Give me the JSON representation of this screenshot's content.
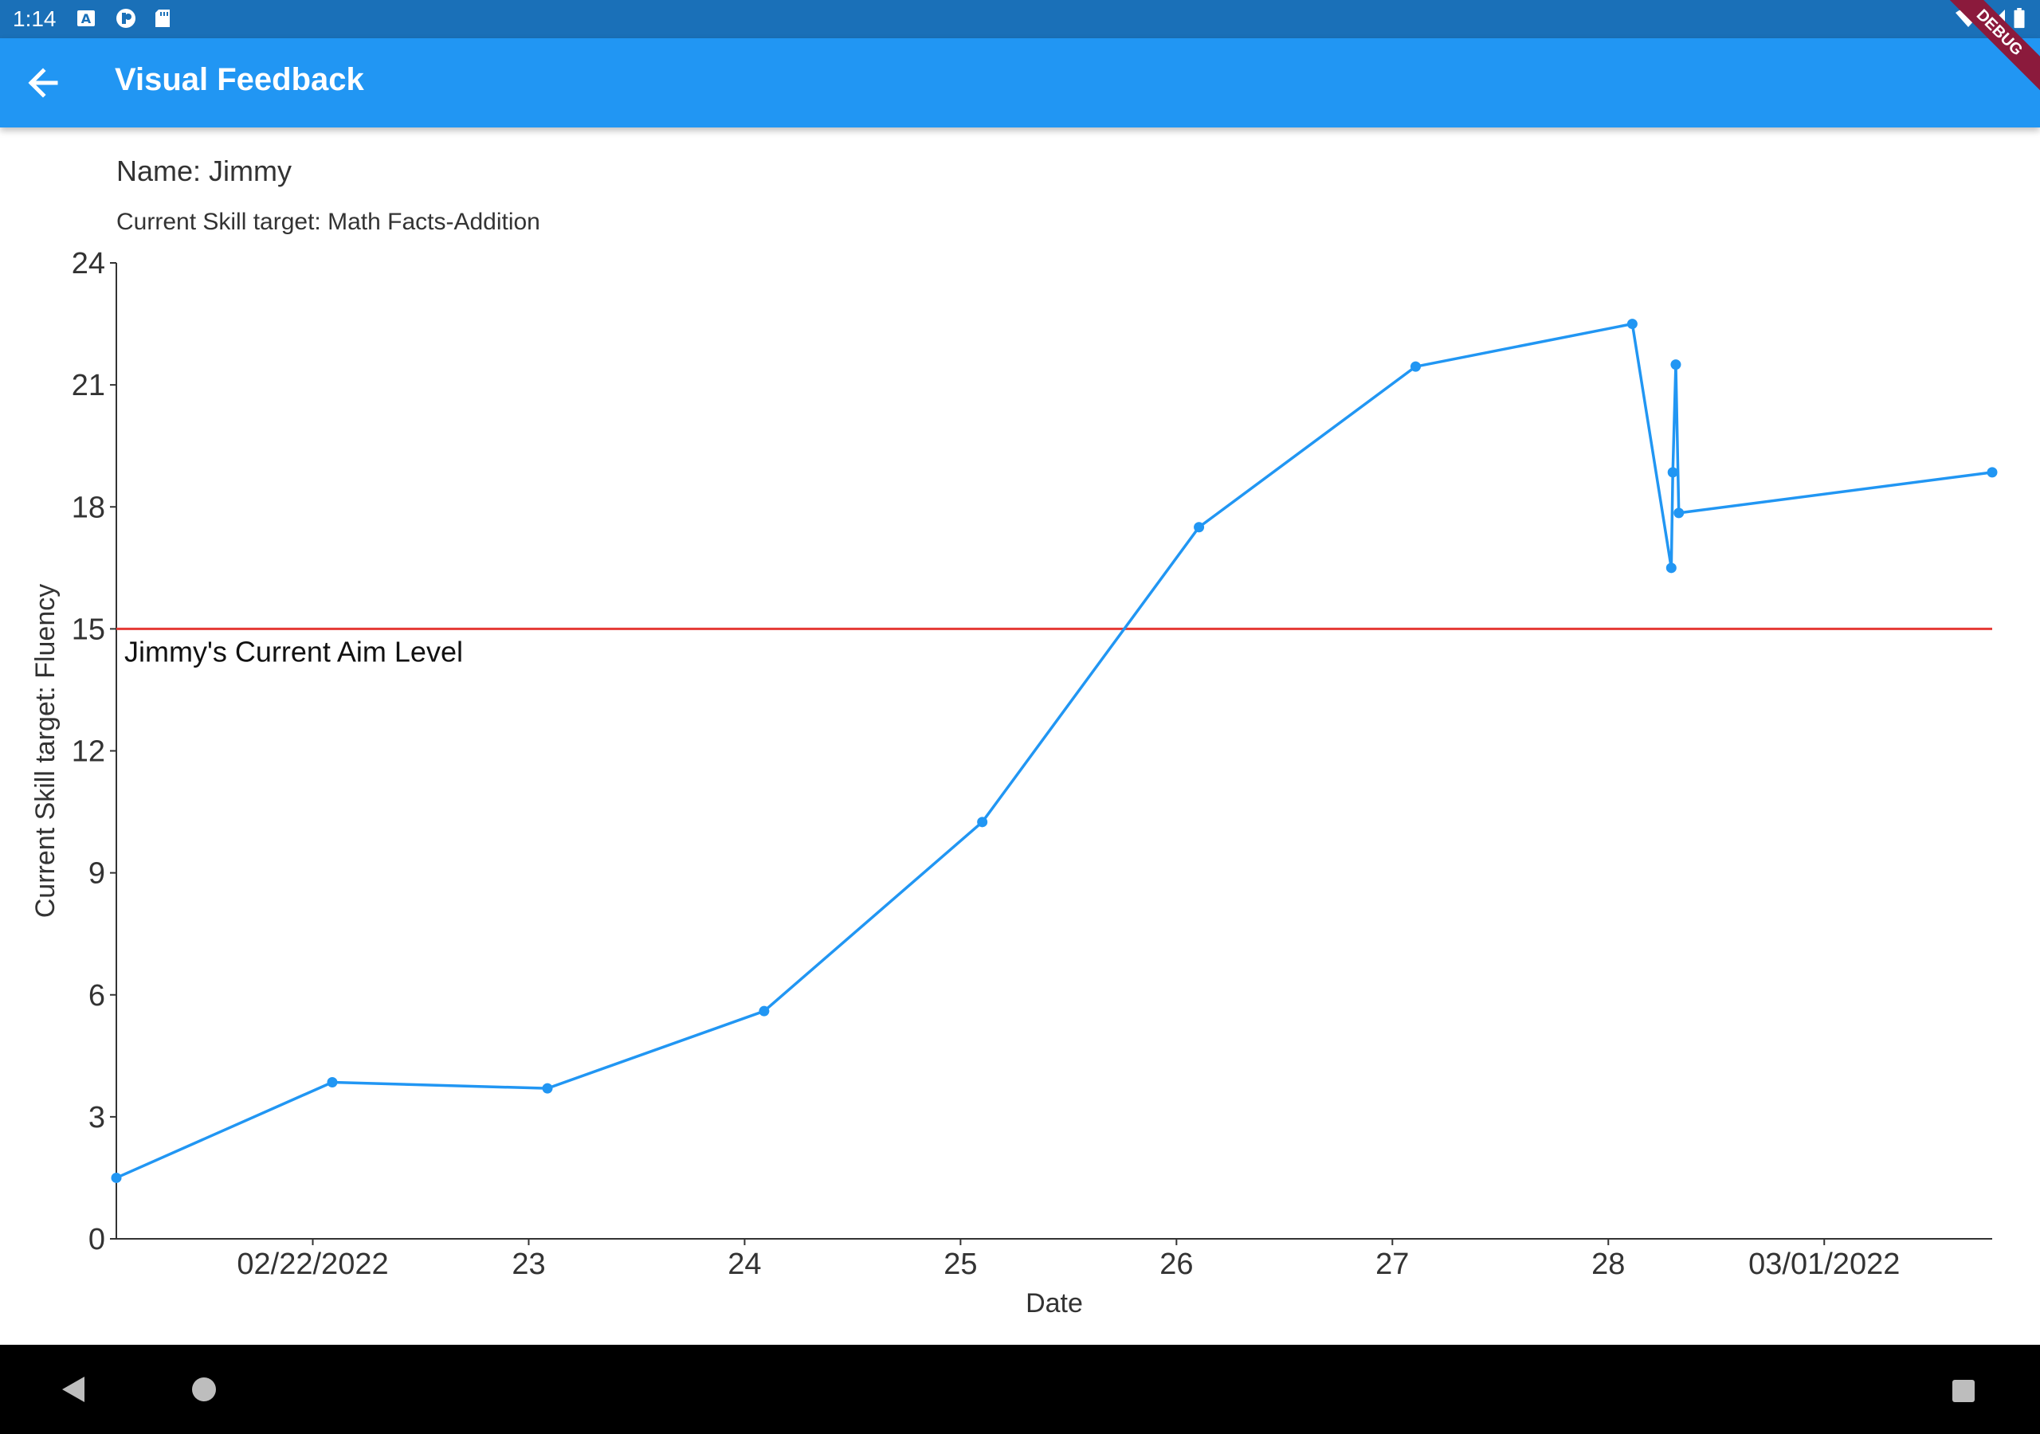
{
  "status_bar": {
    "time": "1:14",
    "icons": [
      "a-notification-icon",
      "app-notification-icon",
      "sd-card-icon",
      "wifi-icon",
      "signal-icon",
      "battery-icon"
    ]
  },
  "app_bar": {
    "title": "Visual Feedback",
    "back_icon": "arrow-back-icon",
    "color": "#2196f3"
  },
  "debug_banner": "DEBUG",
  "student": {
    "name_label": "Name: Jimmy",
    "skill_label": "Current Skill target: Math Facts-Addition"
  },
  "chart_data": {
    "type": "line",
    "xlabel": "Date",
    "ylabel": "Current Skill target: Fluency",
    "x_ticks": [
      {
        "date": "2022-02-22",
        "label": "02/22/2022"
      },
      {
        "date": "2022-02-23",
        "label": "23"
      },
      {
        "date": "2022-02-24",
        "label": "24"
      },
      {
        "date": "2022-02-25",
        "label": "25"
      },
      {
        "date": "2022-02-26",
        "label": "26"
      },
      {
        "date": "2022-02-27",
        "label": "27"
      },
      {
        "date": "2022-02-28",
        "label": "28"
      },
      {
        "date": "2022-03-01",
        "label": "03/01/2022"
      }
    ],
    "xlim": [
      "2022-02-21T02:10",
      "2022-03-01T18:40"
    ],
    "ylim": [
      0,
      24
    ],
    "y_ticks": [
      0,
      3,
      6,
      9,
      12,
      15,
      18,
      21,
      24
    ],
    "series": [
      {
        "color": "#2196f3",
        "points": [
          {
            "x": "2022-02-21T02:10",
            "y": 1.5
          },
          {
            "x": "2022-02-22T02:10",
            "y": 3.85
          },
          {
            "x": "2022-02-23T02:05",
            "y": 3.7
          },
          {
            "x": "2022-02-24T02:10",
            "y": 5.6
          },
          {
            "x": "2022-02-25T02:25",
            "y": 10.25
          },
          {
            "x": "2022-02-26T02:30",
            "y": 17.5
          },
          {
            "x": "2022-02-27T02:35",
            "y": 21.45
          },
          {
            "x": "2022-02-28T02:40",
            "y": 22.5
          },
          {
            "x": "2022-02-28T07:00",
            "y": 16.5
          },
          {
            "x": "2022-02-28T07:10",
            "y": 18.85
          },
          {
            "x": "2022-02-28T07:30",
            "y": 21.5
          },
          {
            "x": "2022-02-28T07:50",
            "y": 17.85
          },
          {
            "x": "2022-03-01T18:40",
            "y": 18.85
          }
        ]
      }
    ],
    "aim_line": {
      "y": 15,
      "label": "Jimmy's Current Aim Level",
      "color": "#e53935"
    },
    "grid": false
  },
  "nav_bar": {
    "buttons": [
      "back-triangle-icon",
      "home-circle-icon",
      "recents-square-icon"
    ]
  }
}
